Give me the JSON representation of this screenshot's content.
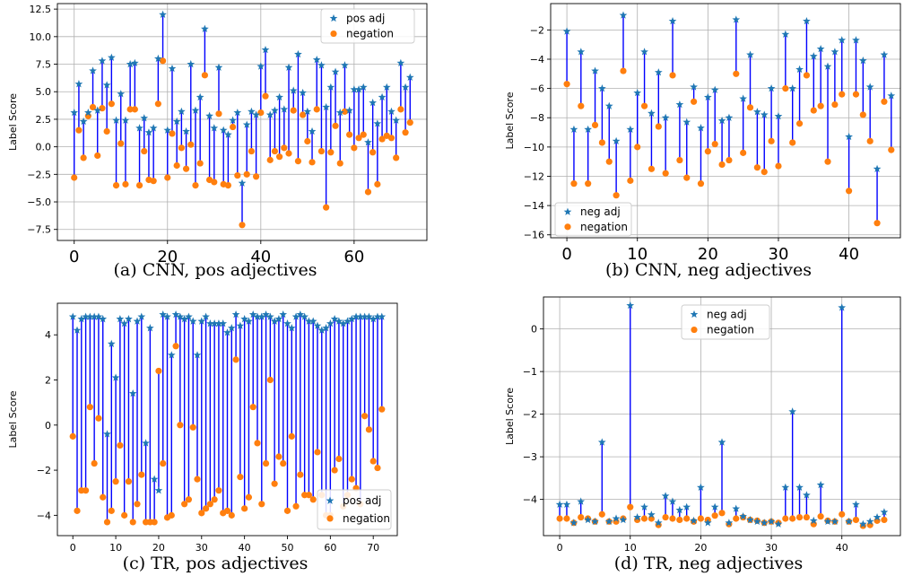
{
  "colors": {
    "stem": "#0000ff",
    "star": "#1f77b4",
    "dot": "#ff7f0e",
    "grid": "#b0b0b0"
  },
  "chart_data": [
    {
      "id": "a",
      "type": "scatter",
      "caption": "(a) CNN, pos adjectives",
      "ylabel": "Label Score",
      "xlabel": "",
      "xlim": [
        -3.6,
        75.6
      ],
      "ylim": [
        -8.5,
        13
      ],
      "xticks": [
        0,
        20,
        40,
        60
      ],
      "yticks": [
        -7.5,
        -5,
        -2.5,
        0,
        2.5,
        5,
        7.5,
        10,
        12.5
      ],
      "grid": true,
      "legend": {
        "position": "top-right",
        "entries": [
          "pos adj",
          "negation"
        ]
      },
      "series": [
        {
          "name": "pos adj",
          "marker": "star",
          "values": [
            3.1,
            5.7,
            2.3,
            3.1,
            6.9,
            3.3,
            7.8,
            5.6,
            8.1,
            2.4,
            4.8,
            2.4,
            7.5,
            7.6,
            1.7,
            2.6,
            1.3,
            1.7,
            8.0,
            12.0,
            1.5,
            7.1,
            2.3,
            3.2,
            1.4,
            7.5,
            3.3,
            4.5,
            10.7,
            2.8,
            1.7,
            7.2,
            1.5,
            1.1,
            2.4,
            3.1,
            -3.3,
            2.0,
            3.2,
            2.9,
            7.3,
            8.8,
            2.9,
            3.3,
            4.5,
            3.4,
            7.2,
            5.1,
            8.4,
            4.9,
            3.2,
            1.4,
            7.9,
            7.4,
            3.6,
            5.4,
            6.8,
            3.1,
            7.4,
            3.3,
            5.2,
            5.2,
            5.4,
            0.4,
            4.0,
            2.1,
            4.5,
            5.4,
            3.2,
            2.4,
            7.6,
            5.4,
            6.3
          ]
        },
        {
          "name": "negation",
          "marker": "circle",
          "values": [
            -2.8,
            1.5,
            -1.0,
            2.8,
            3.6,
            -0.8,
            3.5,
            1.4,
            3.9,
            -3.5,
            0.3,
            -3.4,
            3.4,
            3.4,
            -3.5,
            -0.4,
            -3.0,
            -3.1,
            3.9,
            7.8,
            -2.8,
            1.2,
            -1.7,
            -0.1,
            -2.0,
            0.2,
            -3.5,
            -1.5,
            6.5,
            -3.0,
            -3.2,
            3.0,
            -3.4,
            -3.5,
            1.8,
            -2.6,
            -7.1,
            -2.5,
            -0.4,
            -2.7,
            3.1,
            4.6,
            -1.2,
            -0.4,
            -0.9,
            -0.1,
            -0.6,
            3.3,
            -1.3,
            2.9,
            0.5,
            -1.4,
            3.4,
            -0.4,
            -5.5,
            -0.5,
            1.9,
            -1.5,
            3.2,
            1.1,
            -0.1,
            0.8,
            1.1,
            -4.1,
            -0.5,
            -3.4,
            0.7,
            1.0,
            0.8,
            -1.0,
            3.4,
            1.3,
            2.2
          ]
        }
      ]
    },
    {
      "id": "b",
      "type": "scatter",
      "caption": "(b) CNN, neg adjectives",
      "ylabel": "Label Score",
      "xlabel": "",
      "xlim": [
        -2.3,
        47.3
      ],
      "ylim": [
        -16.2,
        -0.2
      ],
      "xticks": [
        0,
        10,
        20,
        30,
        40
      ],
      "yticks": [
        -16,
        -14,
        -12,
        -10,
        -8,
        -6,
        -4,
        -2
      ],
      "grid": true,
      "legend": {
        "position": "bottom-left",
        "entries": [
          "neg adj",
          "negation"
        ]
      },
      "series": [
        {
          "name": "neg adj",
          "marker": "star",
          "values": [
            -2.1,
            -8.8,
            -3.5,
            -8.8,
            -4.8,
            -6.0,
            -7.2,
            -9.6,
            -1.0,
            -8.8,
            -6.3,
            -3.5,
            -7.7,
            -4.9,
            -8.0,
            -1.4,
            -7.1,
            -8.3,
            -5.9,
            -8.7,
            -6.6,
            -6.1,
            -8.2,
            -8.0,
            -1.3,
            -6.7,
            -3.7,
            -7.6,
            -7.8,
            -6.0,
            -7.9,
            -2.3,
            -6.0,
            -4.7,
            -1.4,
            -3.8,
            -3.3,
            -4.5,
            -3.5,
            -2.7,
            -9.3,
            -2.7,
            -4.1,
            -5.9,
            -11.5,
            -3.7,
            -6.5
          ],
          "note": ""
        },
        {
          "name": "negation",
          "marker": "circle",
          "values": [
            -5.7,
            -12.5,
            -7.2,
            -12.5,
            -8.5,
            -9.7,
            -11.0,
            -13.3,
            -4.8,
            -12.3,
            -10.0,
            -7.2,
            -11.5,
            -8.6,
            -11.8,
            -5.1,
            -10.9,
            -12.1,
            -6.9,
            -12.5,
            -10.3,
            -9.8,
            -11.2,
            -10.9,
            -5.0,
            -10.4,
            -7.3,
            -11.4,
            -11.7,
            -9.6,
            -11.3,
            -6.0,
            -9.7,
            -8.4,
            -5.1,
            -7.5,
            -7.2,
            -11.0,
            -7.1,
            -6.4,
            -13.0,
            -6.4,
            -7.8,
            -9.6,
            -15.2,
            -6.9,
            -10.2
          ]
        }
      ]
    },
    {
      "id": "c",
      "type": "scatter",
      "caption": "(c) TR, pos adjectives",
      "ylabel": "Label Score",
      "xlabel": "",
      "xlim": [
        -3.6,
        75.6
      ],
      "ylim": [
        -4.9,
        5.4
      ],
      "xticks": [
        0,
        10,
        20,
        30,
        40,
        50,
        60,
        70
      ],
      "yticks": [
        -4,
        -2,
        0,
        2,
        4
      ],
      "grid": false,
      "legend": {
        "position": "bottom-right",
        "entries": [
          "pos adj",
          "negation"
        ]
      },
      "series": [
        {
          "name": "pos adj",
          "marker": "star",
          "values": [
            4.8,
            4.2,
            4.7,
            4.8,
            4.8,
            4.8,
            4.8,
            4.7,
            -0.4,
            3.6,
            2.1,
            4.7,
            4.5,
            4.7,
            1.4,
            4.6,
            4.8,
            -0.8,
            4.3,
            -2.4,
            -2.9,
            4.9,
            4.8,
            3.1,
            4.9,
            4.8,
            4.7,
            4.8,
            4.6,
            3.1,
            4.6,
            4.8,
            4.5,
            4.5,
            4.5,
            4.5,
            4.1,
            4.3,
            4.9,
            4.4,
            4.7,
            4.6,
            4.9,
            4.8,
            4.8,
            4.9,
            4.8,
            4.6,
            4.7,
            4.9,
            4.5,
            4.3,
            4.8,
            4.9,
            4.8,
            4.6,
            4.6,
            4.4,
            4.2,
            4.3,
            4.5,
            4.7,
            4.6,
            4.5,
            4.6,
            4.7,
            4.8,
            4.8,
            4.8,
            4.8,
            4.7,
            4.8,
            4.8
          ]
        },
        {
          "name": "negation",
          "marker": "circle",
          "values": [
            -0.5,
            -3.8,
            -2.9,
            -2.9,
            0.8,
            -1.7,
            0.3,
            -3.2,
            -4.3,
            -3.8,
            -2.5,
            -0.9,
            -4.0,
            -2.5,
            -4.3,
            -3.5,
            -2.2,
            -4.3,
            -4.3,
            -4.3,
            2.4,
            -1.7,
            -4.1,
            -4.0,
            3.5,
            0.0,
            -3.5,
            -3.3,
            -0.1,
            -2.4,
            -3.9,
            -3.7,
            -3.5,
            -3.3,
            -2.9,
            -3.9,
            -3.8,
            -4.0,
            2.9,
            -2.3,
            -3.7,
            -3.2,
            0.8,
            -0.8,
            -3.5,
            -1.7,
            2.0,
            -2.6,
            -1.4,
            -1.7,
            -3.8,
            -0.5,
            -3.6,
            -2.2,
            -3.1,
            -3.1,
            -3.3,
            -1.2,
            -3.1,
            -4.0,
            -4.0,
            -2.0,
            -1.5,
            -3.6,
            -3.1,
            -2.4,
            -2.8,
            -3.5,
            0.4,
            -0.2,
            -1.6,
            -1.9,
            0.7
          ]
        }
      ]
    },
    {
      "id": "d",
      "type": "scatter",
      "caption": "(d) TR, neg adjectives",
      "ylabel": "Label Score",
      "xlabel": "",
      "xlim": [
        -2.3,
        48.3
      ],
      "ylim": [
        -4.85,
        0.75
      ],
      "xticks": [
        0,
        10,
        20,
        30,
        40
      ],
      "yticks": [
        -4,
        -3,
        -2,
        -1,
        0
      ],
      "grid": true,
      "legend": {
        "position": "top-center",
        "entries": [
          "neg adj",
          "negation"
        ]
      },
      "series": [
        {
          "name": "neg adj",
          "marker": "star",
          "values": [
            -4.12,
            -4.12,
            -4.55,
            -4.05,
            -4.48,
            -4.52,
            -2.66,
            -4.52,
            -4.45,
            -4.48,
            0.55,
            -4.42,
            -4.18,
            -4.36,
            -4.55,
            -3.92,
            -4.05,
            -4.25,
            -4.18,
            -4.5,
            -3.72,
            -4.55,
            -4.18,
            -2.66,
            -4.55,
            -4.22,
            -4.4,
            -4.48,
            -4.52,
            -4.55,
            -4.52,
            -4.58,
            -3.72,
            -1.94,
            -3.72,
            -3.9,
            -4.5,
            -3.66,
            -4.52,
            -4.52,
            0.5,
            -4.52,
            -4.12,
            -4.58,
            -4.52,
            -4.42,
            -4.3
          ]
        },
        {
          "name": "negation",
          "marker": "circle",
          "values": [
            -4.45,
            -4.45,
            -4.55,
            -4.42,
            -4.45,
            -4.52,
            -4.35,
            -4.52,
            -4.52,
            -4.45,
            -4.18,
            -4.48,
            -4.45,
            -4.45,
            -4.6,
            -4.42,
            -4.45,
            -4.48,
            -4.45,
            -4.52,
            -4.45,
            -4.48,
            -4.38,
            -4.32,
            -4.58,
            -4.45,
            -4.42,
            -4.48,
            -4.5,
            -4.55,
            -4.52,
            -4.55,
            -4.45,
            -4.45,
            -4.42,
            -4.42,
            -4.58,
            -4.4,
            -4.5,
            -4.52,
            -4.35,
            -4.52,
            -4.48,
            -4.62,
            -4.6,
            -4.5,
            -4.48
          ]
        }
      ]
    }
  ]
}
